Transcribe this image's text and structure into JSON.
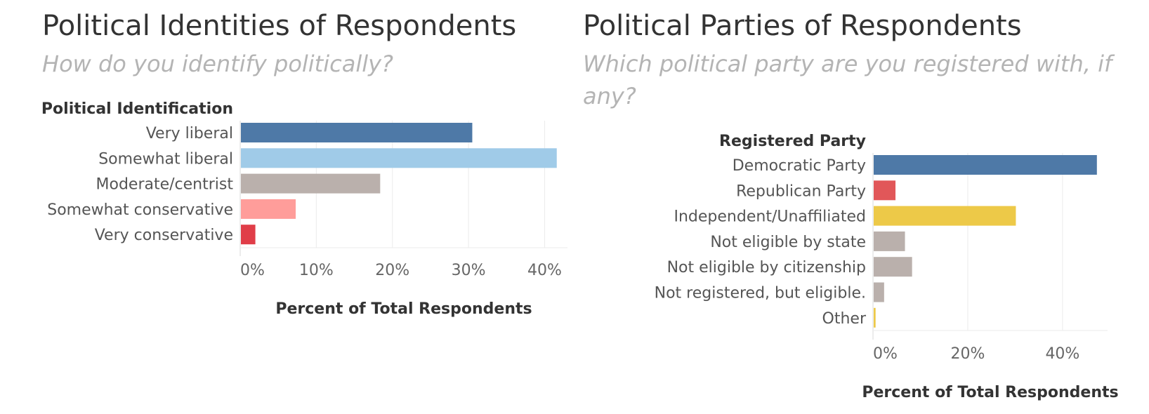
{
  "chart_data": [
    {
      "type": "bar",
      "orientation": "horizontal",
      "title": "Political Identities of Respondents",
      "subtitle": "How do you identify politically?",
      "category_header": "Political Identification",
      "categories": [
        "Very liberal",
        "Somewhat liberal",
        "Moderate/centrist",
        "Somewhat conservative",
        "Very conservative"
      ],
      "values": [
        30.4,
        41.5,
        18.3,
        7.2,
        1.9
      ],
      "colors": [
        "#4e79a7",
        "#a0cbe8",
        "#bab0ac",
        "#ff9d9a",
        "#e03d48"
      ],
      "xlabel": "Percent of Total Respondents",
      "xlim": [
        0,
        43
      ],
      "ticks": [
        0,
        10,
        20,
        30,
        40
      ],
      "tick_labels": [
        "0%",
        "10%",
        "20%",
        "30%",
        "40%"
      ]
    },
    {
      "type": "bar",
      "orientation": "horizontal",
      "title": "Political Parties of Respondents",
      "subtitle": "Which political party are you registered with, if any?",
      "category_header": "Registered Party",
      "categories": [
        "Democratic Party",
        "Republican Party",
        "Independent/Unaffiliated",
        "Not eligible by state",
        "Not eligible by citizenship",
        "Not registered, but eligible.",
        "Other"
      ],
      "values": [
        47.1,
        4.6,
        30.0,
        6.6,
        8.1,
        2.2,
        0.4
      ],
      "colors": [
        "#4e79a7",
        "#e15759",
        "#edc948",
        "#bab0ac",
        "#bab0ac",
        "#bab0ac",
        "#edc948"
      ],
      "xlabel": "Percent of Total Respondents",
      "xlim": [
        0,
        49.5
      ],
      "ticks": [
        0,
        20,
        40
      ],
      "tick_labels": [
        "0%",
        "20%",
        "40%"
      ]
    }
  ]
}
